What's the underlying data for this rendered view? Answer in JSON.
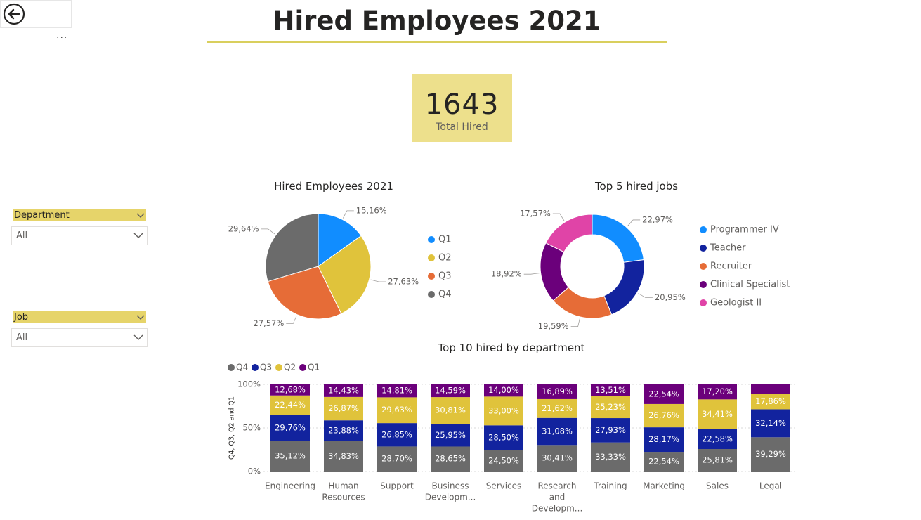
{
  "page": {
    "title": "Hired Employees 2021",
    "more_label": "...",
    "back_icon": "back-arrow-icon"
  },
  "kpi": {
    "value": "1643",
    "label": "Total Hired"
  },
  "slicers": [
    {
      "header": "Department",
      "value": "All"
    },
    {
      "header": "Job",
      "value": "All"
    }
  ],
  "colors": {
    "accent": "#e6d46a",
    "Q1": "#6b007b",
    "Q2": "#e0c33b",
    "Q3": "#12239e",
    "Q4": "#6b6b6b",
    "pie_Q1": "#118dff",
    "pie_Q3": "#e66c37",
    "Programmer IV": "#118dff",
    "Teacher": "#12239e",
    "Recruiter": "#e66c37",
    "Clinical Specialist": "#6b007b",
    "Geologist II": "#e044a7"
  },
  "chart_data": [
    {
      "type": "pie",
      "title": "Hired Employees 2021",
      "labels": [
        "Q1",
        "Q2",
        "Q3",
        "Q4"
      ],
      "values": [
        15.16,
        27.63,
        27.57,
        29.64
      ],
      "value_labels": [
        "15,16%",
        "27,63%",
        "27,57%",
        "29,64%"
      ],
      "colors": [
        "#118dff",
        "#e0c33b",
        "#e66c37",
        "#6b6b6b"
      ],
      "legend": "right"
    },
    {
      "type": "pie",
      "donut": true,
      "title": "Top 5 hired jobs",
      "labels": [
        "Programmer IV",
        "Teacher",
        "Recruiter",
        "Clinical Specialist",
        "Geologist II"
      ],
      "values": [
        22.97,
        20.95,
        19.59,
        18.92,
        17.57
      ],
      "value_labels": [
        "22,97%",
        "20,95%",
        "19,59%",
        "18,92%",
        "17,57%"
      ],
      "colors": [
        "#118dff",
        "#12239e",
        "#e66c37",
        "#6b007b",
        "#e044a7"
      ],
      "legend": "right"
    },
    {
      "type": "bar",
      "stacked": "100%",
      "title": "Top 10 hired by department",
      "ylabel": "Q4, Q3, Q2 and Q1",
      "ylim": [
        0,
        100
      ],
      "yticks": [
        "0%",
        "50%",
        "100%"
      ],
      "legend_order": [
        "Q4",
        "Q3",
        "Q2",
        "Q1"
      ],
      "legend": "top-left",
      "categories": [
        "Engineering",
        "Human Resources",
        "Support",
        "Business Developm...",
        "Services",
        "Research and Developm...",
        "Training",
        "Marketing",
        "Sales",
        "Legal"
      ],
      "category_lines": [
        [
          "Engineering"
        ],
        [
          "Human",
          "Resources"
        ],
        [
          "Support"
        ],
        [
          "Business",
          "Developm..."
        ],
        [
          "Services"
        ],
        [
          "Research",
          "and",
          "Developm..."
        ],
        [
          "Training"
        ],
        [
          "Marketing"
        ],
        [
          "Sales"
        ],
        [
          "Legal"
        ]
      ],
      "series": [
        {
          "name": "Q4",
          "color": "#6b6b6b",
          "values": [
            35.12,
            34.83,
            28.7,
            28.65,
            24.5,
            30.41,
            33.33,
            22.54,
            25.81,
            39.29
          ],
          "labels": [
            "35,12%",
            "34,83%",
            "28,70%",
            "28,65%",
            "24,50%",
            "30,41%",
            "33,33%",
            "22,54%",
            "25,81%",
            "39,29%"
          ]
        },
        {
          "name": "Q3",
          "color": "#12239e",
          "values": [
            29.76,
            23.88,
            26.85,
            25.95,
            28.5,
            31.08,
            27.93,
            28.17,
            22.58,
            32.14
          ],
          "labels": [
            "29,76%",
            "23,88%",
            "26,85%",
            "25,95%",
            "28,50%",
            "31,08%",
            "27,93%",
            "28,17%",
            "22,58%",
            "32,14%"
          ]
        },
        {
          "name": "Q2",
          "color": "#e0c33b",
          "values": [
            22.44,
            26.87,
            29.63,
            30.81,
            33.0,
            21.62,
            25.23,
            26.76,
            34.41,
            17.86
          ],
          "labels": [
            "22,44%",
            "26,87%",
            "29,63%",
            "30,81%",
            "33,00%",
            "21,62%",
            "25,23%",
            "26,76%",
            "34,41%",
            "17,86%"
          ]
        },
        {
          "name": "Q1",
          "color": "#6b007b",
          "values": [
            12.68,
            14.43,
            14.81,
            14.59,
            14.0,
            16.89,
            13.51,
            22.54,
            17.2,
            10.71
          ],
          "labels": [
            "12,68%",
            "14,43%",
            "14,81%",
            "14,59%",
            "14,00%",
            "16,89%",
            "13,51%",
            "22,54%",
            "17,20%",
            ""
          ]
        }
      ]
    }
  ]
}
